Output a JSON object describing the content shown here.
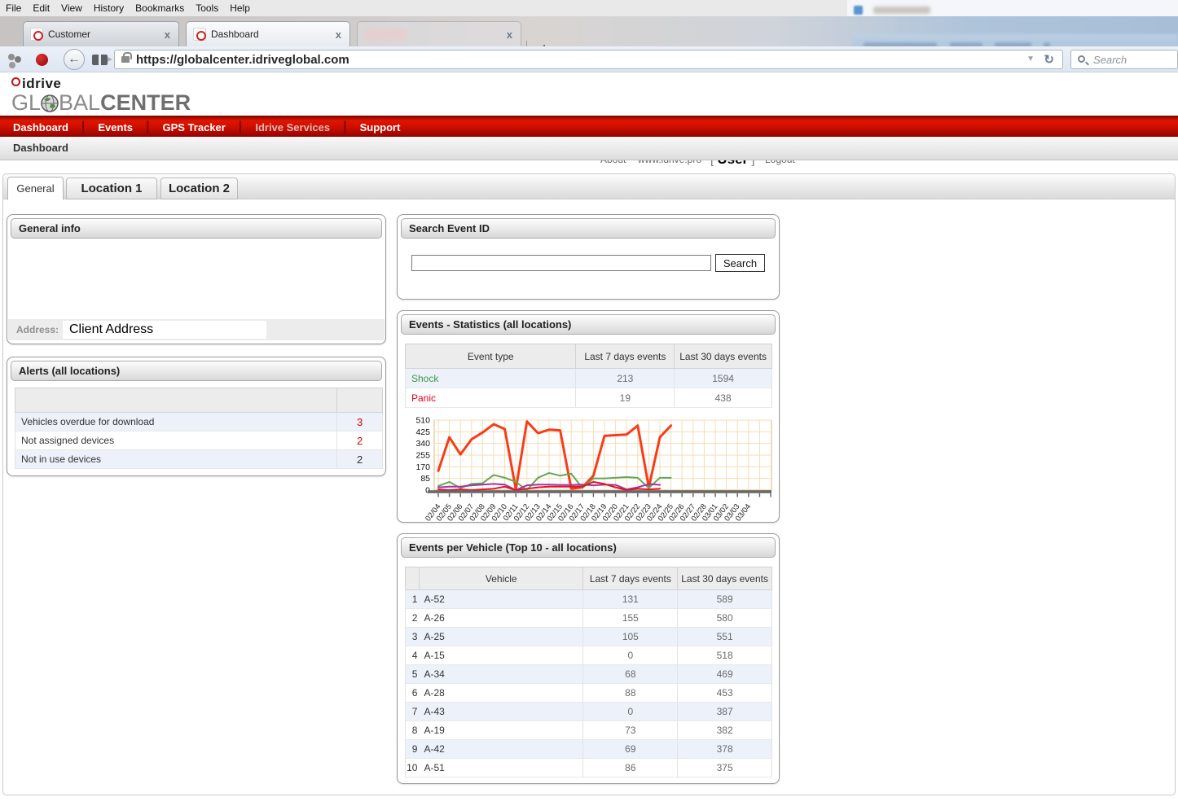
{
  "browser": {
    "menu_items": [
      "File",
      "Edit",
      "View",
      "History",
      "Bookmarks",
      "Tools",
      "Help"
    ],
    "tabs": {
      "tab1": "Customer",
      "tab2": "Dashboard",
      "tab3": ""
    },
    "tab_close": "x",
    "new_tab_button": "+",
    "back_glyph": "←",
    "url_dropdown_glyph": "▼",
    "reload_glyph": "↻",
    "url": "https://globalcenter.idriveglobal.com",
    "search_placeholder": "Search"
  },
  "header": {
    "logo_top": "idrive",
    "logo_pre": "GL",
    "logo_mid": "BAL",
    "logo_bold": "CENTER",
    "links": {
      "about": "About",
      "site": "www.idrive.pro",
      "user_open": "[ ",
      "user": "User",
      "user_close": " ]",
      "logout": "Logout"
    }
  },
  "rednav": {
    "items": [
      {
        "label": "Dashboard",
        "dim": false
      },
      {
        "label": "Events",
        "dim": false
      },
      {
        "label": "GPS Tracker",
        "dim": false
      },
      {
        "label": "Idrive Services",
        "dim": true
      },
      {
        "label": "Support",
        "dim": false
      }
    ]
  },
  "breadcrumb": "Dashboard",
  "page_tabs": {
    "general": "General",
    "location1": "Location 1",
    "location2": "Location 2"
  },
  "general_info": {
    "title": "General info",
    "address_label": "Address:",
    "address_value": "Client Address"
  },
  "alerts": {
    "title": "Alerts (all locations)",
    "rows": [
      {
        "label": "Vehicles overdue for download",
        "value": "3",
        "red": true
      },
      {
        "label": "Not assigned devices",
        "value": "2",
        "red": true
      },
      {
        "label": "Not in use devices",
        "value": "2",
        "red": false
      }
    ]
  },
  "search_event": {
    "title": "Search Event ID",
    "input_value": "",
    "button_label": "Search"
  },
  "events_stats": {
    "title": "Events - Statistics (all locations)",
    "headers": [
      "Event type",
      "Last 7 days events",
      "Last 30 days events"
    ],
    "rows": [
      {
        "type": "Shock",
        "color": "#3d9944",
        "last7": "213",
        "last30": "1594"
      },
      {
        "type": "Panic",
        "color": "#e80016",
        "last7": "19",
        "last30": "438"
      }
    ]
  },
  "chart_data": {
    "type": "line",
    "title": "",
    "xlabel": "",
    "ylabel": "",
    "x": [
      "02/04",
      "02/05",
      "02/06",
      "02/07",
      "02/08",
      "02/09",
      "02/10",
      "02/11",
      "02/12",
      "02/13",
      "02/14",
      "02/15",
      "02/16",
      "02/17",
      "02/18",
      "02/19",
      "02/20",
      "02/21",
      "02/22",
      "02/23",
      "02/24",
      "02/25",
      "02/26",
      "02/27",
      "02/28",
      "03/01",
      "03/02",
      "03/03",
      "03/04"
    ],
    "ylim": [
      0,
      510
    ],
    "yticks": [
      0,
      85,
      170,
      255,
      340,
      425,
      510
    ],
    "grid": true,
    "grid_color": "#f4ddb4",
    "plot_border_color": "#e2b474",
    "axis_color": "#666666",
    "legend_position": "none",
    "series": [
      {
        "name": "red-thick",
        "color": "#f93c17",
        "width": 3,
        "values": [
          140,
          385,
          260,
          370,
          420,
          480,
          445,
          5,
          500,
          415,
          440,
          435,
          10,
          20,
          105,
          395,
          400,
          405,
          470,
          20,
          385,
          470
        ]
      },
      {
        "name": "green",
        "color": "#61a856",
        "width": 2,
        "values": [
          30,
          60,
          15,
          45,
          50,
          110,
          90,
          60,
          0,
          90,
          125,
          105,
          120,
          15,
          85,
          85,
          90,
          95,
          90,
          15,
          90,
          90
        ]
      },
      {
        "name": "purple",
        "color": "#a035a8",
        "width": 2,
        "values": [
          20,
          25,
          25,
          35,
          40,
          45,
          40,
          0,
          35,
          40,
          40,
          38,
          38,
          40,
          35,
          40,
          38,
          5,
          20,
          45,
          38
        ]
      },
      {
        "name": "red-thin",
        "color": "#e81123",
        "width": 2,
        "values": [
          5,
          0,
          5,
          0,
          5,
          10,
          25,
          0,
          10,
          20,
          25,
          25,
          25,
          25,
          60,
          45,
          20,
          0,
          10,
          5,
          10
        ]
      }
    ]
  },
  "events_per_vehicle": {
    "title": "Events per Vehicle (Top 10 - all locations)",
    "headers": [
      "",
      "Vehicle",
      "Last 7 days events",
      "Last 30 days events"
    ],
    "rows": [
      {
        "rank": "1",
        "vehicle": "A-52",
        "last7": "131",
        "last30": "589"
      },
      {
        "rank": "2",
        "vehicle": "A-26",
        "last7": "155",
        "last30": "580"
      },
      {
        "rank": "3",
        "vehicle": "A-25",
        "last7": "105",
        "last30": "551"
      },
      {
        "rank": "4",
        "vehicle": "A-15",
        "last7": "0",
        "last30": "518"
      },
      {
        "rank": "5",
        "vehicle": "A-34",
        "last7": "68",
        "last30": "469"
      },
      {
        "rank": "6",
        "vehicle": "A-28",
        "last7": "88",
        "last30": "453"
      },
      {
        "rank": "7",
        "vehicle": "A-43",
        "last7": "0",
        "last30": "387"
      },
      {
        "rank": "8",
        "vehicle": "A-19",
        "last7": "73",
        "last30": "382"
      },
      {
        "rank": "9",
        "vehicle": "A-42",
        "last7": "69",
        "last30": "378"
      },
      {
        "rank": "10",
        "vehicle": "A-51",
        "last7": "86",
        "last30": "375"
      }
    ]
  }
}
